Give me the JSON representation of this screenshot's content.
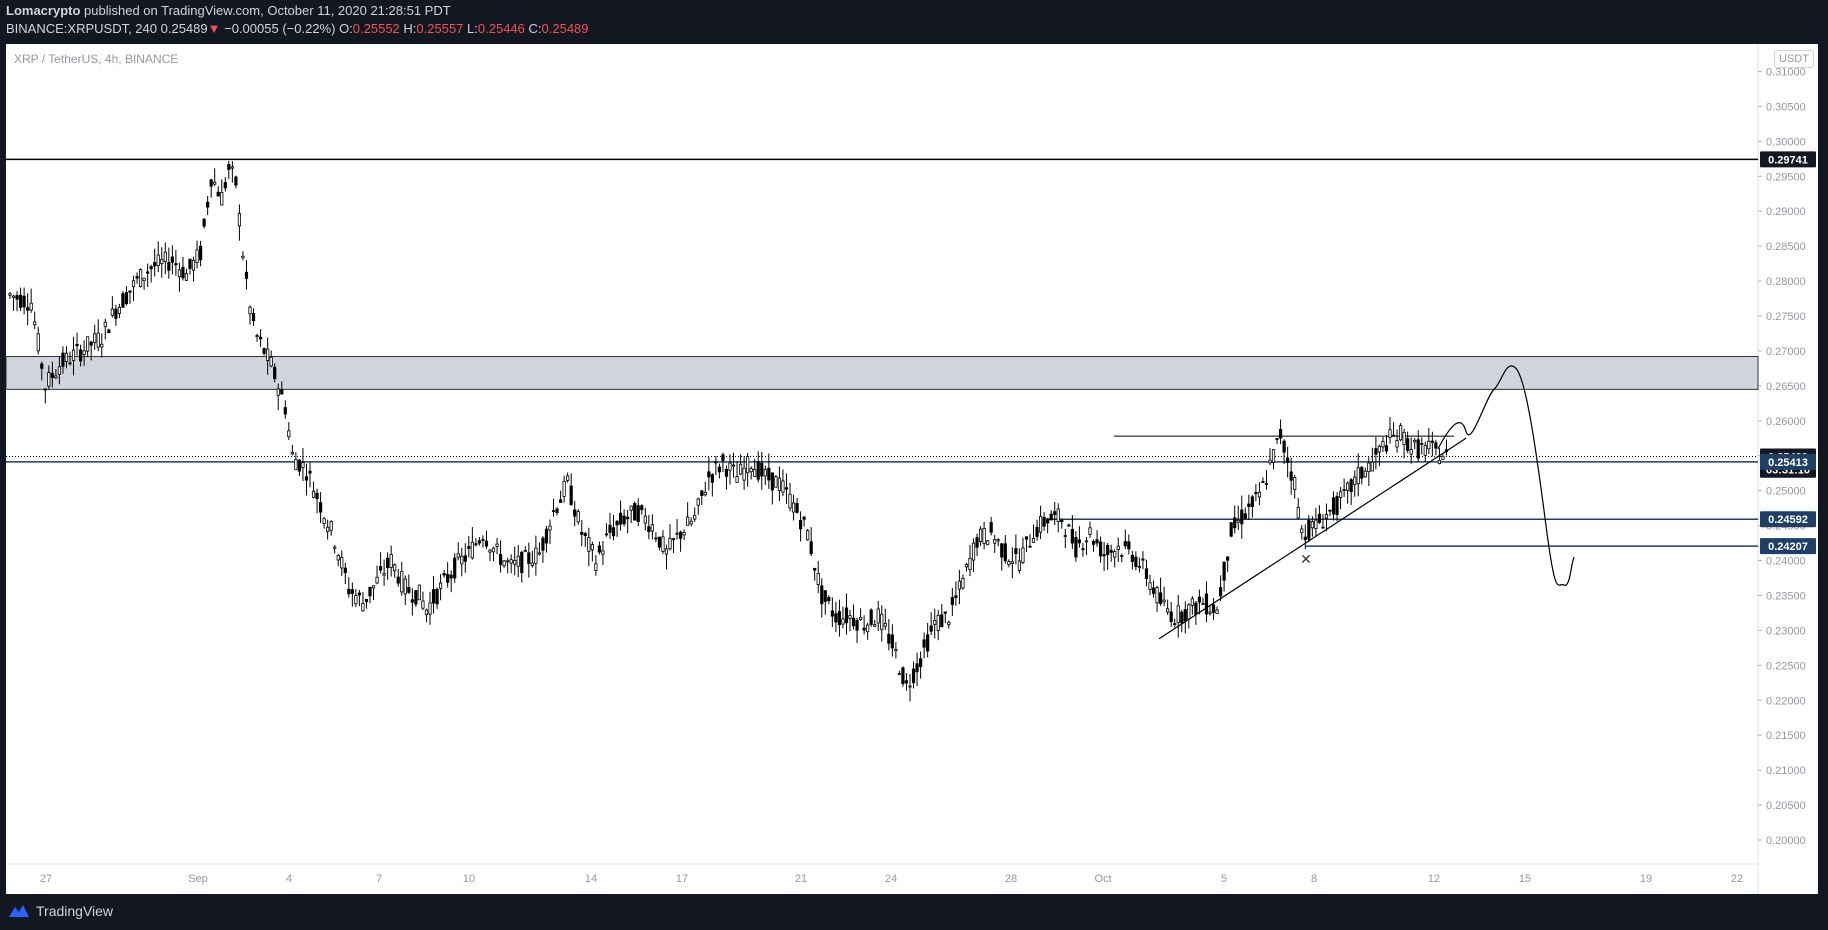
{
  "header": {
    "author": "Lomacrypto",
    "published": " published on TradingView.com, October 11, 2020 21:28:51 PDT",
    "symbol": "BINANCE:XRPUSDT, 240",
    "last": "0.25489",
    "change_arrow": "▼",
    "change": "−0.00055 (−0.22%)",
    "o_label": "O:",
    "o_value": "0.25552",
    "h_label": "H:",
    "h_value": "0.25557",
    "l_label": "L:",
    "l_value": "0.25446",
    "c_label": "C:",
    "c_value": "0.25489"
  },
  "legend": "XRP / TetherUS, 4h, BINANCE",
  "currency": "USDT",
  "footer": {
    "brand": "TradingView",
    "icon": "tradingview-logo-icon"
  },
  "colors": {
    "candle": "#000000",
    "zone": "#d1d4dc",
    "blue_line": "#1e3f66",
    "badge_dark": "#131722",
    "badge_blue": "#1e3f66",
    "axis_text": "#9598a1"
  },
  "chart_data": {
    "type": "candlestick",
    "title": "XRP / TetherUS, 4h, BINANCE",
    "y_ticks": [
      "0.31000",
      "0.30500",
      "0.30000",
      "0.29500",
      "0.29000",
      "0.28500",
      "0.28000",
      "0.27500",
      "0.27000",
      "0.26500",
      "0.26000",
      "0.25500",
      "0.25000",
      "0.24500",
      "0.24000",
      "0.23500",
      "0.23000",
      "0.22500",
      "0.22000",
      "0.21500",
      "0.21000",
      "0.20500",
      "0.20000"
    ],
    "ylim": [
      0.198,
      0.3125
    ],
    "x_ticks": [
      "27",
      "Sep",
      "4",
      "7",
      "10",
      "14",
      "17",
      "21",
      "24",
      "28",
      "Oct",
      "5",
      "8",
      "12",
      "15",
      "19",
      "22"
    ],
    "price_badges": [
      {
        "label": "0.29741",
        "value": 0.29741,
        "style": "dark"
      },
      {
        "label": "0.25489",
        "value": 0.25489,
        "style": "dark"
      },
      {
        "label": "03:31:10",
        "value": 0.253,
        "style": "dark"
      },
      {
        "label": "0.25413",
        "value": 0.25413,
        "style": "blue"
      },
      {
        "label": "0.24592",
        "value": 0.24592,
        "style": "blue"
      },
      {
        "label": "0.24207",
        "value": 0.24207,
        "style": "blue"
      }
    ],
    "close_path": [
      [
        0,
        0.278
      ],
      [
        6,
        0.277
      ],
      [
        10,
        0.265
      ],
      [
        14,
        0.268
      ],
      [
        20,
        0.27
      ],
      [
        26,
        0.272
      ],
      [
        30,
        0.276
      ],
      [
        36,
        0.28
      ],
      [
        40,
        0.282
      ],
      [
        46,
        0.283
      ],
      [
        50,
        0.281
      ],
      [
        54,
        0.284
      ],
      [
        57,
        0.295
      ],
      [
        60,
        0.292
      ],
      [
        62,
        0.296
      ],
      [
        64,
        0.294
      ],
      [
        66,
        0.284
      ],
      [
        68,
        0.276
      ],
      [
        70,
        0.272
      ],
      [
        74,
        0.268
      ],
      [
        78,
        0.262
      ],
      [
        80,
        0.255
      ],
      [
        84,
        0.253
      ],
      [
        88,
        0.248
      ],
      [
        92,
        0.243
      ],
      [
        96,
        0.236
      ],
      [
        100,
        0.234
      ],
      [
        104,
        0.237
      ],
      [
        108,
        0.24
      ],
      [
        112,
        0.236
      ],
      [
        116,
        0.235
      ],
      [
        118,
        0.233
      ],
      [
        122,
        0.236
      ],
      [
        126,
        0.239
      ],
      [
        130,
        0.241
      ],
      [
        134,
        0.244
      ],
      [
        138,
        0.241
      ],
      [
        142,
        0.239
      ],
      [
        146,
        0.24
      ],
      [
        150,
        0.241
      ],
      [
        154,
        0.247
      ],
      [
        158,
        0.251
      ],
      [
        162,
        0.244
      ],
      [
        166,
        0.24
      ],
      [
        170,
        0.244
      ],
      [
        174,
        0.246
      ],
      [
        178,
        0.247
      ],
      [
        182,
        0.245
      ],
      [
        186,
        0.241
      ],
      [
        190,
        0.244
      ],
      [
        194,
        0.246
      ],
      [
        198,
        0.252
      ],
      [
        202,
        0.254
      ],
      [
        206,
        0.252
      ],
      [
        210,
        0.254
      ],
      [
        214,
        0.252
      ],
      [
        218,
        0.251
      ],
      [
        222,
        0.248
      ],
      [
        226,
        0.244
      ],
      [
        230,
        0.235
      ],
      [
        234,
        0.232
      ],
      [
        238,
        0.232
      ],
      [
        242,
        0.231
      ],
      [
        246,
        0.232
      ],
      [
        250,
        0.228
      ],
      [
        254,
        0.222
      ],
      [
        258,
        0.226
      ],
      [
        262,
        0.231
      ],
      [
        266,
        0.232
      ],
      [
        270,
        0.237
      ],
      [
        274,
        0.243
      ],
      [
        278,
        0.244
      ],
      [
        282,
        0.241
      ],
      [
        286,
        0.24
      ],
      [
        290,
        0.244
      ],
      [
        294,
        0.246
      ],
      [
        298,
        0.246
      ],
      [
        302,
        0.242
      ],
      [
        306,
        0.244
      ],
      [
        310,
        0.241
      ],
      [
        314,
        0.242
      ],
      [
        318,
        0.241
      ],
      [
        322,
        0.238
      ],
      [
        326,
        0.234
      ],
      [
        330,
        0.232
      ],
      [
        334,
        0.233
      ],
      [
        338,
        0.234
      ],
      [
        342,
        0.233
      ],
      [
        346,
        0.244
      ],
      [
        350,
        0.247
      ],
      [
        354,
        0.249
      ],
      [
        358,
        0.255
      ],
      [
        360,
        0.258
      ],
      [
        364,
        0.251
      ],
      [
        366,
        0.244
      ],
      [
        370,
        0.245
      ],
      [
        374,
        0.247
      ],
      [
        378,
        0.249
      ],
      [
        382,
        0.252
      ],
      [
        386,
        0.254
      ],
      [
        390,
        0.257
      ],
      [
        394,
        0.258
      ],
      [
        398,
        0.256
      ],
      [
        402,
        0.256
      ],
      [
        406,
        0.255
      ],
      [
        408,
        0.25489
      ]
    ],
    "notes": "Horizontal resistance zone 0.2645-0.2692; horizontal line 0.29741; ascending trendline from Oct 2 to Oct 12; projected path up to ~0.268 then down to ~0.238"
  }
}
